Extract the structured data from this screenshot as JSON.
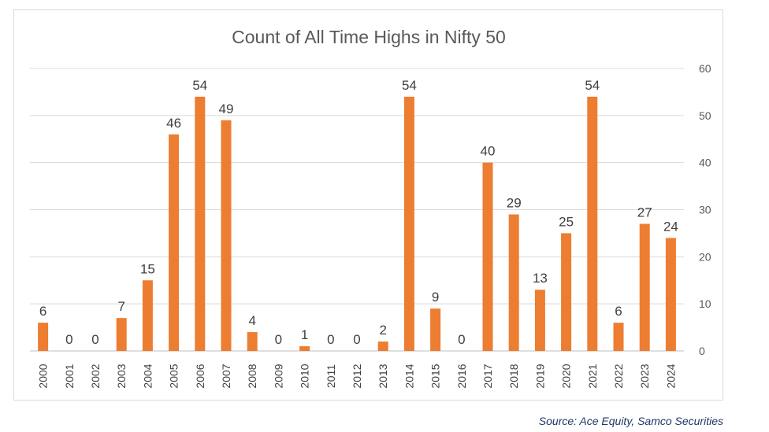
{
  "source": "Source: Ace Equity, Samco Securities",
  "colors": {
    "bar": "#ED7D31",
    "grid": "#d9d9d9",
    "axis": "#bfbfbf"
  },
  "chart_data": {
    "type": "bar",
    "title": "Count of All Time Highs in Nifty 50",
    "xlabel": "",
    "ylabel": "",
    "ylim": [
      0,
      60
    ],
    "yticks": [
      0,
      10,
      20,
      30,
      40,
      50,
      60
    ],
    "y_axis_side": "right",
    "grid": true,
    "legend": "none",
    "categories": [
      "2000",
      "2001",
      "2002",
      "2003",
      "2004",
      "2005",
      "2006",
      "2007",
      "2008",
      "2009",
      "2010",
      "2011",
      "2012",
      "2013",
      "2014",
      "2015",
      "2016",
      "2017",
      "2018",
      "2019",
      "2020",
      "2021",
      "2022",
      "2023",
      "2024"
    ],
    "values": [
      6,
      0,
      0,
      7,
      15,
      46,
      54,
      49,
      4,
      0,
      1,
      0,
      0,
      2,
      54,
      9,
      0,
      40,
      29,
      13,
      25,
      54,
      6,
      27,
      24
    ],
    "data_labels": [
      "6",
      "0",
      "0",
      "7",
      "15",
      "46",
      "54",
      "49",
      "4",
      "0",
      "1",
      "0",
      "0",
      "2",
      "54",
      "9",
      "0",
      "40",
      "29",
      "13",
      "25",
      "54",
      "6",
      "27",
      "24"
    ]
  }
}
